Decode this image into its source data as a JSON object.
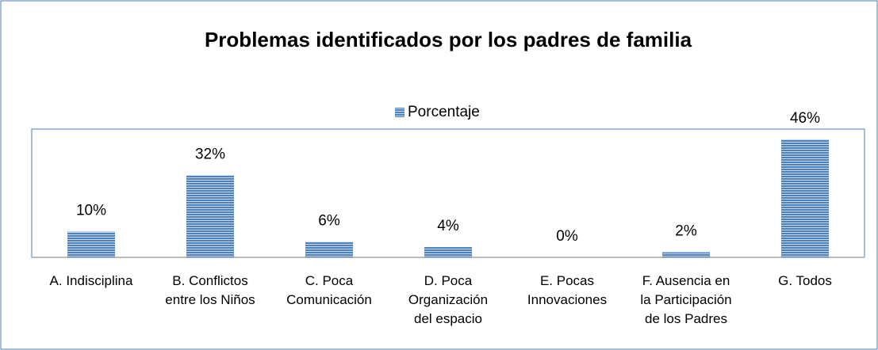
{
  "chart_data": {
    "type": "bar",
    "title": "Problemas identificados por los padres de familia",
    "categories": [
      [
        "A. Indisciplina"
      ],
      [
        "B. Conflictos",
        "entre los Niños"
      ],
      [
        "C. Poca",
        "Comunicación"
      ],
      [
        "D. Poca",
        "Organización",
        "del espacio"
      ],
      [
        "E. Pocas",
        "Innovaciones"
      ],
      [
        "F. Ausencia en",
        "la Participación",
        "de los Padres"
      ],
      [
        "G. Todos"
      ]
    ],
    "series": [
      {
        "name": "Porcentaje",
        "color": "#4f81bd",
        "values": [
          10,
          32,
          6,
          4,
          0,
          2,
          46
        ],
        "value_labels": [
          "10%",
          "32%",
          "6%",
          "4%",
          "0%",
          "2%",
          "46%"
        ]
      }
    ],
    "ylim": [
      0,
      50
    ],
    "legend": "top"
  }
}
